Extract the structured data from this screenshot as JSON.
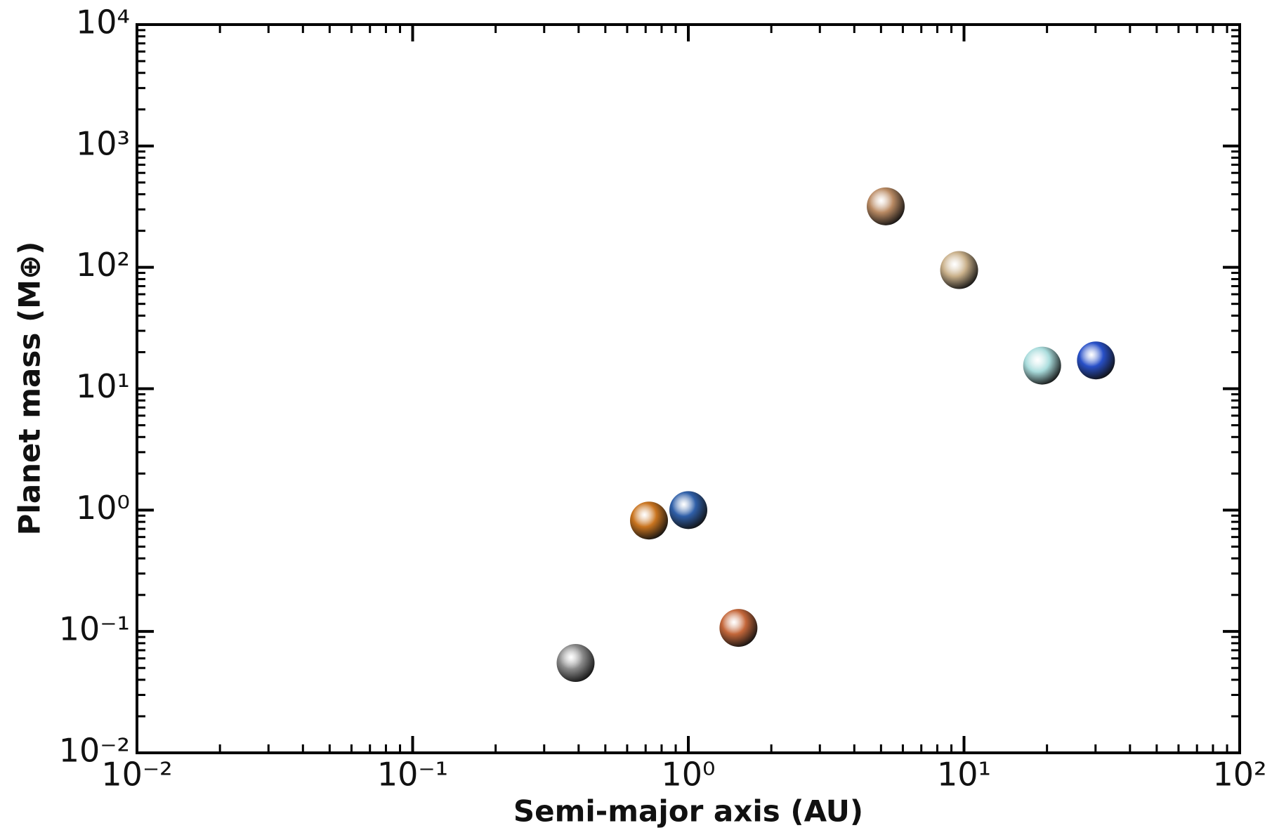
{
  "chart_data": {
    "type": "scatter",
    "xlabel": "Semi-major axis (AU)",
    "ylabel": "Planet mass (M⊕)",
    "xscale": "log",
    "yscale": "log",
    "xlim": [
      0.01,
      100
    ],
    "ylim": [
      0.01,
      10000
    ],
    "xticks": [
      {
        "value": 0.01,
        "label": "10⁻²"
      },
      {
        "value": 0.1,
        "label": "10⁻¹"
      },
      {
        "value": 1,
        "label": "10⁰"
      },
      {
        "value": 10,
        "label": "10¹"
      },
      {
        "value": 100,
        "label": "10²"
      }
    ],
    "yticks": [
      {
        "value": 0.01,
        "label": "10⁻²"
      },
      {
        "value": 0.1,
        "label": "10⁻¹"
      },
      {
        "value": 1,
        "label": "10⁰"
      },
      {
        "value": 10,
        "label": "10¹"
      },
      {
        "value": 100,
        "label": "10²"
      },
      {
        "value": 1000,
        "label": "10³"
      },
      {
        "value": 10000,
        "label": "10⁴"
      }
    ],
    "series": [
      {
        "x": [
          0.39,
          0.72,
          1.0,
          1.52,
          5.2,
          9.6,
          19.2,
          30.1
        ],
        "values": [
          0.055,
          0.82,
          1.0,
          0.107,
          318,
          95,
          15.5,
          17.1
        ],
        "colors": [
          "#8a8a8a",
          "#c9741f",
          "#2f5fa8",
          "#c4673a",
          "#b98a63",
          "#c9b08a",
          "#a9dcdc",
          "#2850c8"
        ]
      }
    ]
  }
}
